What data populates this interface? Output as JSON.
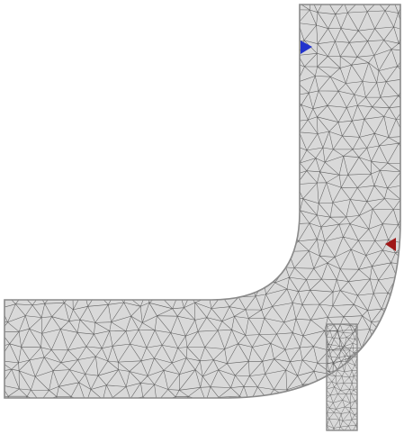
{
  "figure": {
    "background_color": "#ffffff",
    "mesh_fill_color": "#d9d9d9",
    "mesh_edge_color": "#4a4a4a",
    "outline_color": "#8a8a8a",
    "markers": [
      {
        "name": "inlet-marker",
        "shape": "triangle-right",
        "color": "#2233cc"
      },
      {
        "name": "outlet-marker",
        "shape": "triangle-left",
        "color": "#a01818"
      }
    ]
  }
}
